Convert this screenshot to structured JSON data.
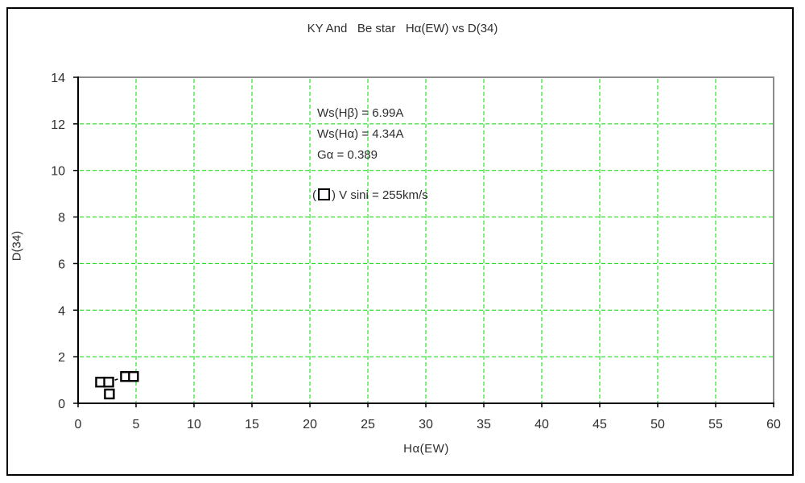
{
  "window": {
    "background": "#ffffff",
    "frame_border_color": "#000000"
  },
  "chart_data": {
    "type": "scatter",
    "title": "KY And   Be star   Hα(EW) vs D(34)",
    "xlabel": "Hα(EW)",
    "ylabel": "D(34)",
    "xlim": [
      0,
      60
    ],
    "ylim": [
      0,
      14
    ],
    "xticks": [
      0,
      5,
      10,
      15,
      20,
      25,
      30,
      35,
      40,
      45,
      50,
      55,
      60
    ],
    "yticks": [
      0,
      2,
      4,
      6,
      8,
      10,
      12,
      14
    ],
    "grid": true,
    "grid_color": "#00DC00",
    "axis_color": "#000000",
    "border_top_right_color": "#8C8C8C",
    "text_color": "#2E2E2E",
    "marker": {
      "shape": "open-square",
      "size": 11,
      "stroke": "#000000",
      "fill": "#FFFFFF"
    },
    "points": [
      {
        "x": 1.94,
        "y": 0.91
      },
      {
        "x": 2.64,
        "y": 0.91
      },
      {
        "x": 4.09,
        "y": 1.15
      },
      {
        "x": 4.78,
        "y": 1.15
      },
      {
        "x": 2.7,
        "y": 0.4
      }
    ],
    "connected_point_indices": [
      1,
      2
    ],
    "annotations": [
      "Ws(Hβ) = 6.99A",
      "Ws(Hα) = 4.34A",
      "Gα = 0.389"
    ],
    "legend": {
      "open_paren": "(",
      "close_paren": ")",
      "label": " V sini = 255km/s"
    }
  }
}
